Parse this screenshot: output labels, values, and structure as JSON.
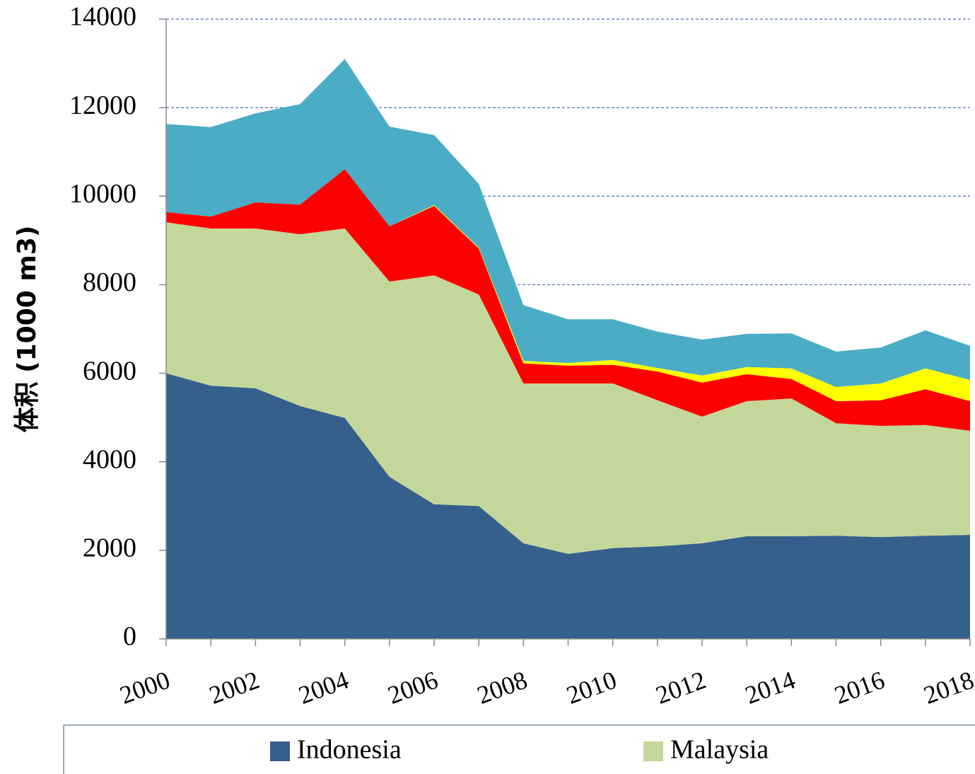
{
  "chart_data": {
    "type": "stacked-area",
    "y_label": "体积 (1000 m3)",
    "x": [
      2000,
      2001,
      2002,
      2003,
      2004,
      2005,
      2006,
      2007,
      2008,
      2009,
      2010,
      2011,
      2012,
      2013,
      2014,
      2015,
      2016,
      2017,
      2018
    ],
    "xlim": [
      2000,
      2018
    ],
    "xticks": [
      2000,
      2002,
      2004,
      2006,
      2008,
      2010,
      2012,
      2014,
      2016,
      2018
    ],
    "ylim": [
      0,
      14000
    ],
    "yticks": [
      0,
      2000,
      4000,
      6000,
      8000,
      10000,
      12000,
      14000
    ],
    "grid": true,
    "series": [
      {
        "name": "Indonesia",
        "color": "#36608c",
        "values": [
          6000,
          5720,
          5660,
          5260,
          4990,
          3660,
          3040,
          3000,
          2160,
          1920,
          2050,
          2090,
          2160,
          2320,
          2320,
          2330,
          2300,
          2330,
          2350
        ]
      },
      {
        "name": "Malaysia",
        "color": "#c4d79b",
        "values": [
          3410,
          3550,
          3610,
          3880,
          4280,
          4410,
          5170,
          4780,
          3610,
          3850,
          3720,
          3300,
          2860,
          3050,
          3110,
          2540,
          2510,
          2500,
          2350
        ]
      },
      {
        "color": "#ff0000",
        "values": [
          230,
          270,
          590,
          670,
          1340,
          1250,
          1570,
          1040,
          450,
          400,
          420,
          650,
          770,
          610,
          440,
          500,
          580,
          810,
          670
        ]
      },
      {
        "color": "#ffff00",
        "values": [
          0,
          0,
          0,
          0,
          0,
          0,
          20,
          20,
          60,
          60,
          110,
          80,
          160,
          160,
          240,
          320,
          380,
          470,
          480
        ]
      },
      {
        "color": "#4bacc6",
        "values": [
          1990,
          2020,
          2010,
          2270,
          2490,
          2250,
          1580,
          1440,
          1260,
          990,
          920,
          820,
          810,
          750,
          790,
          800,
          810,
          860,
          770
        ]
      }
    ]
  }
}
